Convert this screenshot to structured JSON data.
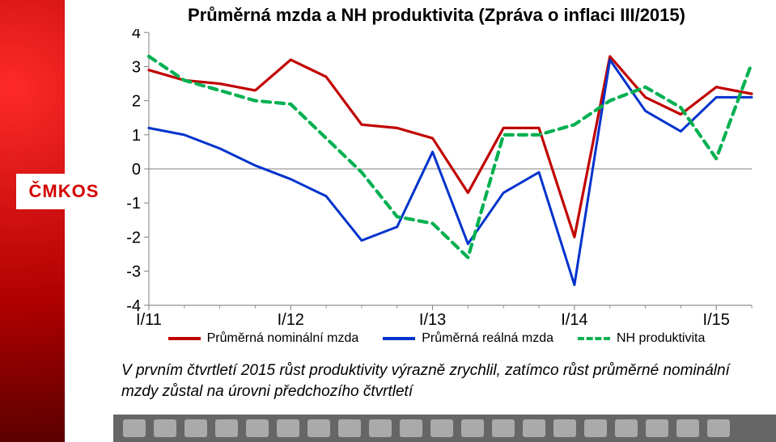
{
  "brand_badge": "ČMKOS",
  "brand_badge_color": "#d40000",
  "title": "Průměrná mzda a NH produktivita (Zpráva o inflaci III/2015)",
  "chart": {
    "type": "line",
    "ylim": [
      -4,
      4
    ],
    "ytick_step": 1,
    "yticks": [
      4,
      3,
      2,
      1,
      0,
      -1,
      -2,
      -3,
      -4
    ],
    "x_major_labels": [
      "I/11",
      "I/12",
      "I/13",
      "I/14",
      "I/15"
    ],
    "n_points": 18,
    "background_color": "#ffffff",
    "grid_color": "#808080",
    "axis_color": "#808080",
    "tick_fontsize": 20,
    "series": [
      {
        "name": "Průměrná nominální mzda",
        "color": "#c00000",
        "width": 3.2,
        "dash": "none",
        "values": [
          2.9,
          2.6,
          2.5,
          2.3,
          3.2,
          2.7,
          1.3,
          1.2,
          0.9,
          -0.7,
          1.2,
          1.2,
          -2.0,
          3.3,
          2.1,
          1.6,
          2.4,
          2.2
        ]
      },
      {
        "name": "Průměrná reálná mzda",
        "color": "#0033cc",
        "width": 3.0,
        "dash": "none",
        "values": [
          1.2,
          1.0,
          0.6,
          0.1,
          -0.3,
          -0.8,
          -2.1,
          -1.7,
          0.5,
          -2.2,
          -0.7,
          -0.1,
          -3.4,
          3.2,
          1.7,
          1.1,
          2.1,
          2.1
        ]
      },
      {
        "name": "NH produktivita",
        "color": "#00b050",
        "width": 4.2,
        "dash": "10,7",
        "values": [
          3.3,
          2.6,
          2.3,
          2.0,
          1.9,
          0.9,
          -0.1,
          -1.4,
          -1.6,
          -2.6,
          1.0,
          1.0,
          1.3,
          2.0,
          2.4,
          1.8,
          0.3,
          3.1
        ]
      }
    ]
  },
  "legend": {
    "items": [
      {
        "label": "Průměrná nominální mzda",
        "color": "#c00000",
        "dash": false
      },
      {
        "label": "Průměrná reálná mzda",
        "color": "#0033cc",
        "dash": false
      },
      {
        "label": "NH produktivita",
        "color": "#00b050",
        "dash": true
      }
    ]
  },
  "caption": "V prvním čtvrtletí 2015 růst produktivity výrazně zrychlil, zatímco růst průměrné nominální mzdy zůstal na úrovni předchozího čtvrtletí",
  "footer_logo_count": 20
}
